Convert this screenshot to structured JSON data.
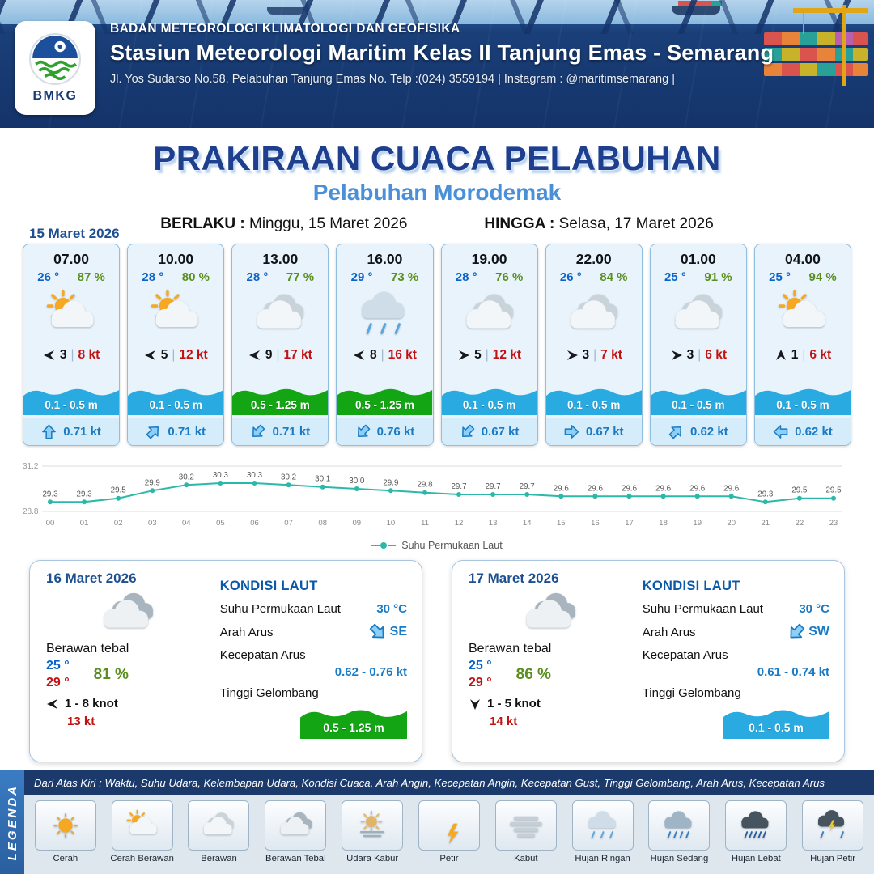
{
  "colors": {
    "blue": "#29abe2",
    "green": "#13a513",
    "teal": "#2bb8a8",
    "navy": "#1b3a6b",
    "accent_blue": "#1a7ac4"
  },
  "header": {
    "logo": "BMKG",
    "agency": "BADAN METEOROLOGI KLIMATOLOGI DAN GEOFISIKA",
    "station": "Stasiun Meteorologi Maritim Kelas II Tanjung Emas - Semarang",
    "address": "Jl. Yos Sudarso No.58, Pelabuhan Tanjung Emas No. Telp :(024) 3559194 | Instagram : @maritimsemarang |"
  },
  "title": {
    "main": "PRAKIRAAN CUACA PELABUHAN",
    "sub": "Pelabuhan Morodemak",
    "berlaku_label": "BERLAKU :",
    "berlaku": "Minggu, 15 Maret 2026",
    "hingga_label": "HINGGA :",
    "hingga": "Selasa, 17 Maret 2026"
  },
  "forecast_date": "15 Maret 2026",
  "forecast_cards": [
    {
      "time": "07.00",
      "temp": "26 °",
      "humidity": "87 %",
      "icon": "cerah-berawan",
      "wind_to": "W",
      "wind_speed": "3",
      "gust": "8 kt",
      "wave": "0.1 - 0.5 m",
      "wave_color": "blue",
      "current_to": "N",
      "current": "0.71 kt"
    },
    {
      "time": "10.00",
      "temp": "28 °",
      "humidity": "80 %",
      "icon": "cerah-berawan",
      "wind_to": "W",
      "wind_speed": "5",
      "gust": "12 kt",
      "wave": "0.1 - 0.5 m",
      "wave_color": "blue",
      "current_to": "NE",
      "current": "0.71 kt"
    },
    {
      "time": "13.00",
      "temp": "28 °",
      "humidity": "77 %",
      "icon": "berawan",
      "wind_to": "W",
      "wind_speed": "9",
      "gust": "17 kt",
      "wave": "0.5 - 1.25 m",
      "wave_color": "green",
      "current_to": "SW",
      "current": "0.71 kt"
    },
    {
      "time": "16.00",
      "temp": "29 °",
      "humidity": "73 %",
      "icon": "hujan-ringan",
      "wind_to": "W",
      "wind_speed": "8",
      "gust": "16 kt",
      "wave": "0.5 - 1.25 m",
      "wave_color": "green",
      "current_to": "SW",
      "current": "0.76 kt"
    },
    {
      "time": "19.00",
      "temp": "28 °",
      "humidity": "76 %",
      "icon": "berawan",
      "wind_to": "E",
      "wind_speed": "5",
      "gust": "12 kt",
      "wave": "0.1 - 0.5 m",
      "wave_color": "blue",
      "current_to": "SW",
      "current": "0.67 kt"
    },
    {
      "time": "22.00",
      "temp": "26 °",
      "humidity": "84 %",
      "icon": "berawan",
      "wind_to": "E",
      "wind_speed": "3",
      "gust": "7 kt",
      "wave": "0.1 - 0.5 m",
      "wave_color": "blue",
      "current_to": "E",
      "current": "0.67 kt"
    },
    {
      "time": "01.00",
      "temp": "25 °",
      "humidity": "91 %",
      "icon": "berawan",
      "wind_to": "E",
      "wind_speed": "3",
      "gust": "6 kt",
      "wave": "0.1 - 0.5 m",
      "wave_color": "blue",
      "current_to": "NE",
      "current": "0.62 kt"
    },
    {
      "time": "04.00",
      "temp": "25 °",
      "humidity": "94 %",
      "icon": "cerah-berawan",
      "wind_to": "N",
      "wind_speed": "1",
      "gust": "6 kt",
      "wave": "0.1 - 0.5 m",
      "wave_color": "blue",
      "current_to": "W",
      "current": "0.62 kt"
    }
  ],
  "chart_data": {
    "type": "line",
    "title": "",
    "xlabel": "",
    "ylabel": "",
    "legend": "Suhu Permukaan Laut",
    "line_color": "#2bb8a8",
    "ylim": [
      28.8,
      31.2
    ],
    "x": [
      "00",
      "01",
      "02",
      "03",
      "04",
      "05",
      "06",
      "07",
      "08",
      "09",
      "10",
      "11",
      "12",
      "13",
      "14",
      "15",
      "16",
      "17",
      "18",
      "19",
      "20",
      "21",
      "22",
      "23"
    ],
    "series": [
      {
        "name": "Suhu Permukaan Laut",
        "values": [
          29.3,
          29.3,
          29.5,
          29.9,
          30.2,
          30.3,
          30.3,
          30.2,
          30.1,
          30.0,
          29.9,
          29.8,
          29.7,
          29.7,
          29.7,
          29.6,
          29.6,
          29.6,
          29.6,
          29.6,
          29.6,
          29.3,
          29.5,
          29.5
        ]
      }
    ]
  },
  "daily_cards": [
    {
      "date": "16 Maret 2026",
      "icon": "berawan-tebal",
      "condition": "Berawan tebal",
      "temp_min": "25 °",
      "humidity": "81 %",
      "temp_max": "29 °",
      "wind_to": "W",
      "wind_range": "1  - 8 knot",
      "gust": "13 kt",
      "sea": {
        "title": "KONDISI LAUT",
        "sst_label": "Suhu Permukaan Laut",
        "sst": "30 °C",
        "current_dir_label": "Arah Arus",
        "current_dir": "SE",
        "current_speed_label": "Kecepatan Arus",
        "current_speed": "0.62 - 0.76 kt",
        "wave_label": "Tinggi Gelombang",
        "wave": "0.5 - 1.25 m",
        "wave_color": "green"
      }
    },
    {
      "date": "17 Maret 2026",
      "icon": "berawan-tebal",
      "condition": "Berawan tebal",
      "temp_min": "25 °",
      "humidity": "86 %",
      "temp_max": "29 °",
      "wind_to": "S",
      "wind_range": "1  - 5 knot",
      "gust": "14 kt",
      "sea": {
        "title": "KONDISI LAUT",
        "sst_label": "Suhu Permukaan Laut",
        "sst": "30 °C",
        "current_dir_label": "Arah Arus",
        "current_dir": "SW",
        "current_speed_label": "Kecepatan Arus",
        "current_speed": "0.61 - 0.74 kt",
        "wave_label": "Tinggi Gelombang",
        "wave": "0.1 - 0.5 m",
        "wave_color": "blue"
      }
    }
  ],
  "legend": {
    "sidebar": "LEGENDA",
    "note": "Dari Atas Kiri : Waktu, Suhu Udara, Kelembapan Udara, Kondisi Cuaca, Arah Angin, Kecepatan Angin, Kecepatan Gust, Tinggi Gelombang, Arah Arus, Kecepatan Arus",
    "items": [
      {
        "label": "Cerah",
        "icon": "cerah"
      },
      {
        "label": "Cerah Berawan",
        "icon": "cerah-berawan"
      },
      {
        "label": "Berawan",
        "icon": "berawan"
      },
      {
        "label": "Berawan Tebal",
        "icon": "berawan-tebal"
      },
      {
        "label": "Udara Kabur",
        "icon": "udara-kabur"
      },
      {
        "label": "Petir",
        "icon": "petir"
      },
      {
        "label": "Kabut",
        "icon": "kabut"
      },
      {
        "label": "Hujan Ringan",
        "icon": "hujan-ringan"
      },
      {
        "label": "Hujan Sedang",
        "icon": "hujan-sedang"
      },
      {
        "label": "Hujan Lebat",
        "icon": "hujan-lebat"
      },
      {
        "label": "Hujan Petir",
        "icon": "hujan-petir"
      }
    ]
  }
}
